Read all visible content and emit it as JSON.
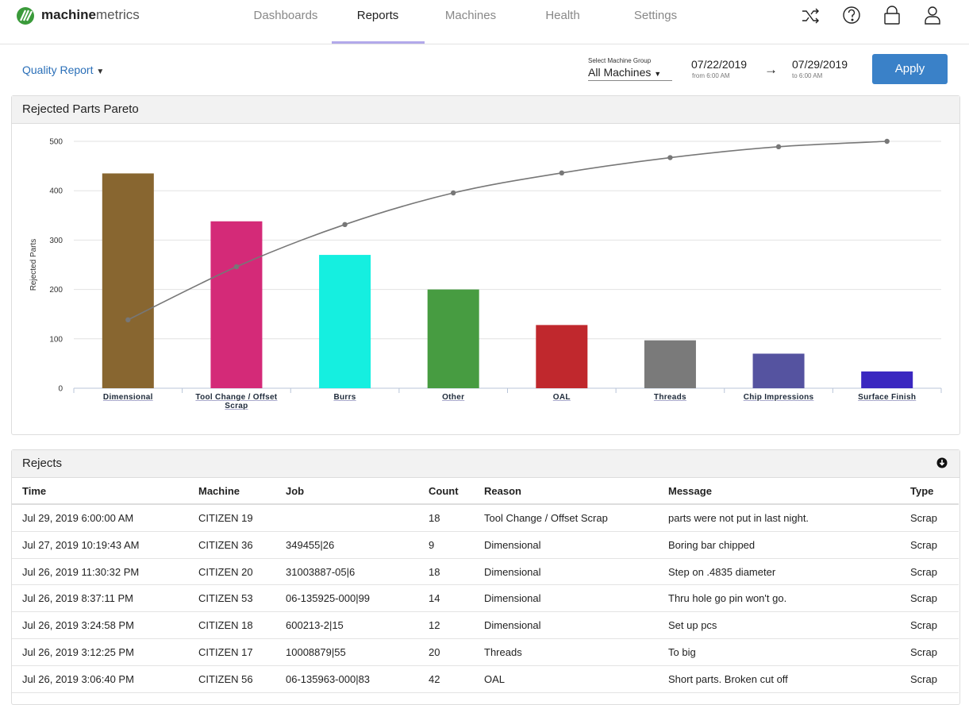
{
  "header": {
    "brand_bold": "machine",
    "brand_light": "metrics",
    "nav": [
      "Dashboards",
      "Reports",
      "Machines",
      "Health",
      "Settings"
    ],
    "active_nav": 1
  },
  "toolbar": {
    "report": "Quality Report",
    "group_label": "Select Machine Group",
    "group": "All Machines",
    "from_date": "07/22/2019",
    "from_time": "from 6:00 AM",
    "to_date": "07/29/2019",
    "to_time": "to 6:00 AM",
    "apply": "Apply"
  },
  "chart_data": {
    "type": "pareto",
    "title": "Rejected Parts Pareto",
    "y_label": "Rejected Parts",
    "categories": [
      "Dimensional",
      "Tool Change / Offset Scrap",
      "Burrs",
      "Other",
      "OAL",
      "Threads",
      "Chip Impressions",
      "Surface Finish"
    ],
    "series": [
      {
        "type": "bar",
        "values": [
          435,
          338,
          270,
          200,
          128,
          97,
          70,
          34
        ],
        "colors": [
          "#886630",
          "#d42a78",
          "#15efe0",
          "#479c41",
          "#c0282d",
          "#7a7a7a",
          "#5553a0",
          "#3a27c0"
        ]
      },
      {
        "type": "line",
        "axis": "y2",
        "color": "#777777",
        "values": [
          27.7,
          49.2,
          66.3,
          79.1,
          87.2,
          93.4,
          97.8,
          100
        ]
      }
    ],
    "ylim": [
      0,
      500
    ],
    "yticks": [
      0,
      100,
      200,
      300,
      400,
      500
    ],
    "y2lim": [
      0,
      100
    ],
    "grid": true
  },
  "table": {
    "title": "Rejects",
    "columns": [
      "Time",
      "Machine",
      "Job",
      "Count",
      "Reason",
      "Message",
      "Type"
    ],
    "rows": [
      [
        "Jul 29, 2019 6:00:00 AM",
        "CITIZEN 19",
        "",
        "18",
        "Tool Change / Offset Scrap",
        "parts were not put in last night.",
        "Scrap"
      ],
      [
        "Jul 27, 2019 10:19:43 AM",
        "CITIZEN 36",
        "349455|26",
        "9",
        "Dimensional",
        "Boring bar chipped",
        "Scrap"
      ],
      [
        "Jul 26, 2019 11:30:32 PM",
        "CITIZEN 20",
        "31003887-05|6",
        "18",
        "Dimensional",
        "Step on .4835 diameter",
        "Scrap"
      ],
      [
        "Jul 26, 2019 8:37:11 PM",
        "CITIZEN 53",
        "06-135925-000|99",
        "14",
        "Dimensional",
        "Thru hole go pin won't go.",
        "Scrap"
      ],
      [
        "Jul 26, 2019 3:24:58 PM",
        "CITIZEN 18",
        "600213-2|15",
        "12",
        "Dimensional",
        "Set up pcs",
        "Scrap"
      ],
      [
        "Jul 26, 2019 3:12:25 PM",
        "CITIZEN 17",
        "10008879|55",
        "20",
        "Threads",
        "To big",
        "Scrap"
      ],
      [
        "Jul 26, 2019 3:06:40 PM",
        "CITIZEN 56",
        "06-135963-000|83",
        "42",
        "OAL",
        "Short parts. Broken cut off",
        "Scrap"
      ]
    ]
  }
}
